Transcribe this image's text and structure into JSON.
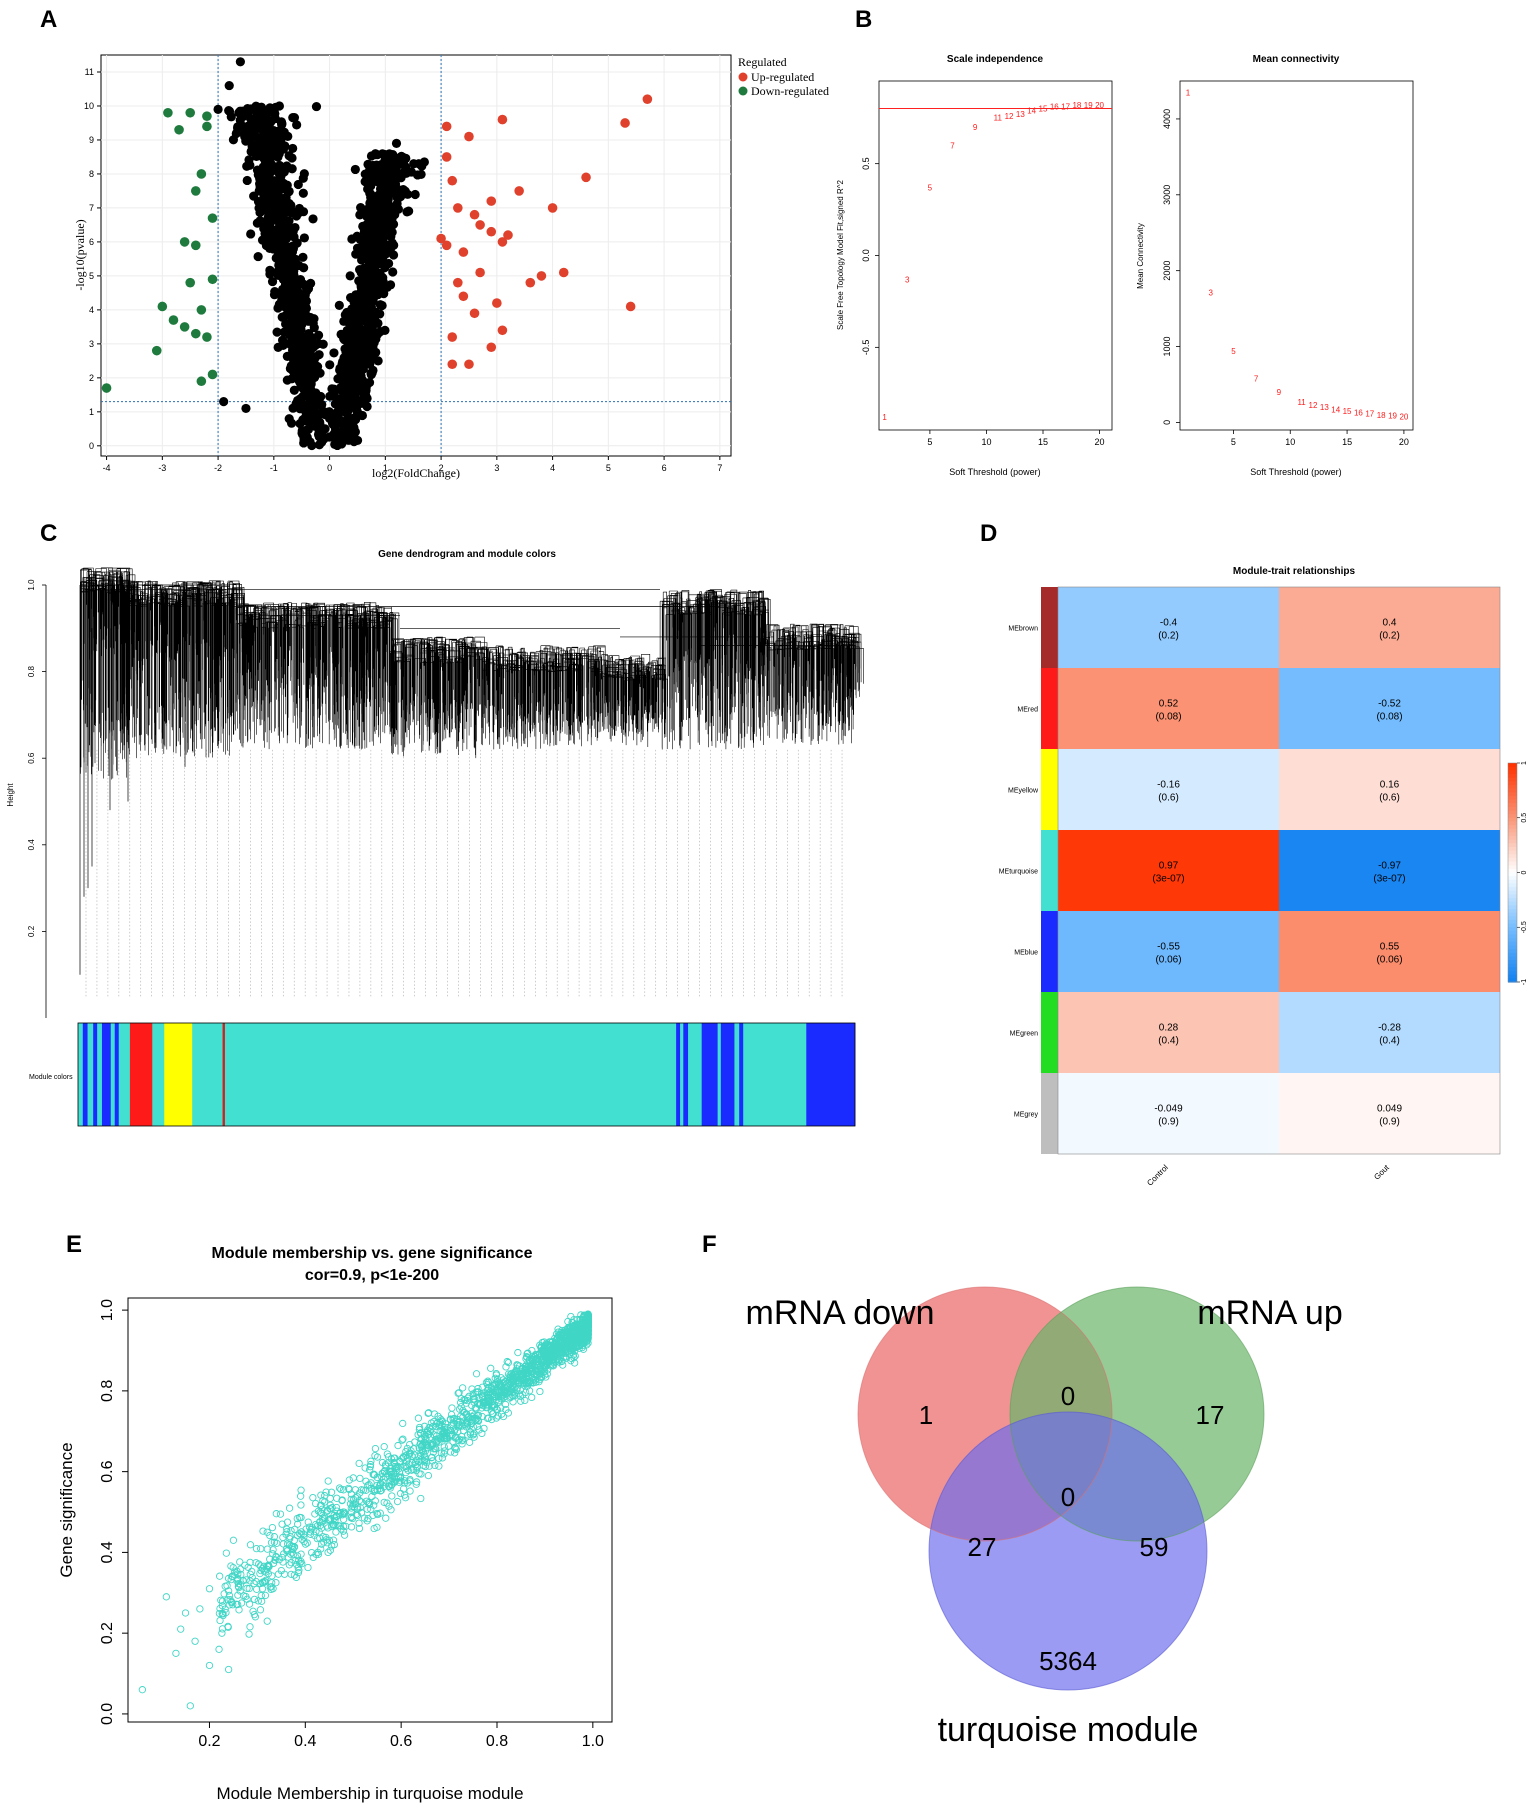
{
  "panels": {
    "A": {
      "letter": "A"
    },
    "B": {
      "letter": "B"
    },
    "C": {
      "letter": "C"
    },
    "D": {
      "letter": "D"
    },
    "E": {
      "letter": "E"
    },
    "F": {
      "letter": "F"
    }
  },
  "chart_data": [
    {
      "id": "A",
      "type": "scatter",
      "title": "",
      "xlabel": "log2(FoldChange)",
      "ylabel": "-log10(pvalue)",
      "xlim": [
        -4.1,
        7.2
      ],
      "ylim": [
        -0.3,
        11.5
      ],
      "xticks": [
        "-4",
        "-3",
        "-2",
        "-1",
        "0",
        "1",
        "2",
        "3",
        "4",
        "5",
        "6",
        "7"
      ],
      "yticks": [
        "0",
        "1",
        "2",
        "3",
        "4",
        "5",
        "6",
        "7",
        "8",
        "9",
        "10",
        "11"
      ],
      "thresholds": {
        "fc": [
          -2,
          2
        ],
        "pvalue_line": 1.3
      },
      "legend": {
        "title": "Regulated",
        "entries": [
          {
            "label": "Up-regulated",
            "color": "#e0412c"
          },
          {
            "label": "Down-regulated",
            "color": "#1f7a3e"
          }
        ],
        "position": "top-right"
      },
      "colors": {
        "not_significant": "#000000",
        "up": "#e0412c",
        "down": "#1f7a3e"
      },
      "series": [
        {
          "name": "Up-regulated",
          "points": [
            [
              5.7,
              10.2
            ],
            [
              5.3,
              9.5
            ],
            [
              3.1,
              9.6
            ],
            [
              2.5,
              9.1
            ],
            [
              4.6,
              7.9
            ],
            [
              3.4,
              7.5
            ],
            [
              4.0,
              7.0
            ],
            [
              5.4,
              4.1
            ],
            [
              4.2,
              5.1
            ],
            [
              3.8,
              5.0
            ],
            [
              3.1,
              6.0
            ],
            [
              2.9,
              6.3
            ],
            [
              3.6,
              4.8
            ],
            [
              2.6,
              6.8
            ],
            [
              2.2,
              7.8
            ],
            [
              2.1,
              8.5
            ],
            [
              2.3,
              7.0
            ],
            [
              2.7,
              5.1
            ],
            [
              2.4,
              4.4
            ],
            [
              3.0,
              4.2
            ],
            [
              3.1,
              3.4
            ],
            [
              2.9,
              2.9
            ],
            [
              2.5,
              2.4
            ],
            [
              2.1,
              5.9
            ],
            [
              2.2,
              3.2
            ],
            [
              2.6,
              3.9
            ],
            [
              2.3,
              4.8
            ],
            [
              2.9,
              7.2
            ],
            [
              3.2,
              6.2
            ],
            [
              2.1,
              9.4
            ],
            [
              2.4,
              5.7
            ],
            [
              2.0,
              6.1
            ],
            [
              2.2,
              2.4
            ],
            [
              2.7,
              6.5
            ]
          ]
        },
        {
          "name": "Down-regulated",
          "points": [
            [
              -4.0,
              1.7
            ],
            [
              -3.0,
              4.1
            ],
            [
              -3.1,
              2.8
            ],
            [
              -2.8,
              3.7
            ],
            [
              -2.6,
              6.0
            ],
            [
              -2.4,
              5.9
            ],
            [
              -2.3,
              8.0
            ],
            [
              -2.7,
              9.3
            ],
            [
              -2.5,
              9.8
            ],
            [
              -2.2,
              9.7
            ],
            [
              -2.1,
              6.7
            ],
            [
              -2.5,
              4.8
            ],
            [
              -2.3,
              4.0
            ],
            [
              -2.4,
              3.3
            ],
            [
              -2.2,
              3.2
            ],
            [
              -2.1,
              2.1
            ],
            [
              -2.9,
              9.8
            ],
            [
              -2.4,
              7.5
            ],
            [
              -2.1,
              4.9
            ],
            [
              -2.6,
              3.5
            ],
            [
              -2.2,
              9.4
            ],
            [
              -2.3,
              1.9
            ]
          ]
        }
      ]
    },
    {
      "id": "B1",
      "type": "scatter",
      "title": "Scale independence",
      "xlabel": "Soft Threshold (power)",
      "ylabel": "Scale Free Topology Model Fit,signed R^2",
      "xlim": [
        0.5,
        21.1
      ],
      "ylim": [
        -0.95,
        0.95
      ],
      "xticks": [
        "5",
        "10",
        "15",
        "20"
      ],
      "yticks": [
        "-0.5",
        "0.0",
        "0.5"
      ],
      "hline": 0.8,
      "points": [
        {
          "power": 1,
          "r2": -0.88
        },
        {
          "power": 3,
          "r2": -0.13
        },
        {
          "power": 5,
          "r2": 0.37
        },
        {
          "power": 7,
          "r2": 0.6
        },
        {
          "power": 9,
          "r2": 0.7
        },
        {
          "power": 11,
          "r2": 0.75
        },
        {
          "power": 12,
          "r2": 0.76
        },
        {
          "power": 13,
          "r2": 0.77
        },
        {
          "power": 14,
          "r2": 0.79
        },
        {
          "power": 15,
          "r2": 0.8
        },
        {
          "power": 16,
          "r2": 0.81
        },
        {
          "power": 17,
          "r2": 0.81
        },
        {
          "power": 18,
          "r2": 0.82
        },
        {
          "power": 19,
          "r2": 0.82
        },
        {
          "power": 20,
          "r2": 0.82
        }
      ]
    },
    {
      "id": "B2",
      "type": "scatter",
      "title": "Mean connectivity",
      "xlabel": "Soft Threshold (power)",
      "ylabel": "Mean Connectivity",
      "xlim": [
        0.3,
        20.8
      ],
      "ylim": [
        -0.1,
        4.5
      ],
      "ylim_units": "thousands",
      "xticks": [
        "5",
        "10",
        "15",
        "20"
      ],
      "yticks": [
        "0",
        "1000",
        "2000",
        "3000",
        "4000"
      ],
      "points": [
        {
          "power": 1,
          "k": 4.35
        },
        {
          "power": 3,
          "k": 1.71
        },
        {
          "power": 5,
          "k": 0.94
        },
        {
          "power": 7,
          "k": 0.58
        },
        {
          "power": 9,
          "k": 0.4
        },
        {
          "power": 11,
          "k": 0.27
        },
        {
          "power": 12,
          "k": 0.23
        },
        {
          "power": 13,
          "k": 0.2
        },
        {
          "power": 14,
          "k": 0.17
        },
        {
          "power": 15,
          "k": 0.15
        },
        {
          "power": 16,
          "k": 0.13
        },
        {
          "power": 17,
          "k": 0.12
        },
        {
          "power": 18,
          "k": 0.1
        },
        {
          "power": 19,
          "k": 0.09
        },
        {
          "power": 20,
          "k": 0.08
        }
      ]
    },
    {
      "id": "C",
      "type": "dendrogram",
      "title": "Gene dendrogram and module colors",
      "ylabel": "Height",
      "ylim": [
        0.0,
        1.0
      ],
      "yticks": [
        "0.2",
        "0.4",
        "0.6",
        "0.8",
        "1.0"
      ],
      "module_label": "Module colors",
      "module_segments": [
        {
          "color": "#41e0d0",
          "w": 0.6
        },
        {
          "color": "#1a2bff",
          "w": 0.6
        },
        {
          "color": "#41e0d0",
          "w": 0.7
        },
        {
          "color": "#1a2bff",
          "w": 0.5
        },
        {
          "color": "#41e0d0",
          "w": 0.6
        },
        {
          "color": "#1a2bff",
          "w": 1.1
        },
        {
          "color": "#41e0d0",
          "w": 0.5
        },
        {
          "color": "#1a2bff",
          "w": 0.5
        },
        {
          "color": "#41e0d0",
          "w": 1.4
        },
        {
          "color": "#ff1a1a",
          "w": 2.8
        },
        {
          "color": "#41e0d0",
          "w": 1.5
        },
        {
          "color": "#ffff00",
          "w": 3.5
        },
        {
          "color": "#41e0d0",
          "w": 3.8
        },
        {
          "color": "#cc2222",
          "w": 0.3
        },
        {
          "color": "#41e0d0",
          "w": 56.5
        },
        {
          "color": "#1a2bff",
          "w": 0.5
        },
        {
          "color": "#41e0d0",
          "w": 0.4
        },
        {
          "color": "#1a2bff",
          "w": 0.6
        },
        {
          "color": "#41e0d0",
          "w": 1.7
        },
        {
          "color": "#1a2bff",
          "w": 2.0
        },
        {
          "color": "#41e0d0",
          "w": 0.4
        },
        {
          "color": "#1a2bff",
          "w": 1.7
        },
        {
          "color": "#41e0d0",
          "w": 0.6
        },
        {
          "color": "#1a2bff",
          "w": 0.5
        },
        {
          "color": "#41e0d0",
          "w": 7.9
        },
        {
          "color": "#1a2bff",
          "w": 6.1
        }
      ]
    },
    {
      "id": "D",
      "type": "heatmap",
      "title": "Module-trait relationships",
      "columns": [
        "Control",
        "Gout"
      ],
      "rows": [
        {
          "name": "MEbrown",
          "color": "#a52a2a",
          "values": [
            -0.4,
            0.4
          ],
          "labels": [
            "-0.4\n(0.2)",
            "0.4\n(0.2)"
          ]
        },
        {
          "name": "MEred",
          "color": "#ff1a1a",
          "values": [
            0.52,
            -0.52
          ],
          "labels": [
            "0.52\n(0.08)",
            "-0.52\n(0.08)"
          ]
        },
        {
          "name": "MEyellow",
          "color": "#ffff00",
          "values": [
            -0.16,
            0.16
          ],
          "labels": [
            "-0.16\n(0.6)",
            "0.16\n(0.6)"
          ]
        },
        {
          "name": "MEturquoise",
          "color": "#41e0d0",
          "values": [
            0.97,
            -0.97
          ],
          "labels": [
            "0.97\n(3e-07)",
            "-0.97\n(3e-07)"
          ]
        },
        {
          "name": "MEblue",
          "color": "#1a2bff",
          "values": [
            -0.55,
            0.55
          ],
          "labels": [
            "-0.55\n(0.06)",
            "0.55\n(0.06)"
          ]
        },
        {
          "name": "MEgreen",
          "color": "#22dd22",
          "values": [
            0.28,
            -0.28
          ],
          "labels": [
            "0.28\n(0.4)",
            "-0.28\n(0.4)"
          ]
        },
        {
          "name": "MEgrey",
          "color": "#bebebe",
          "values": [
            -0.049,
            0.049
          ],
          "labels": [
            "-0.049\n(0.9)",
            "0.049\n(0.9)"
          ]
        }
      ],
      "colorbar_ticks": [
        "1",
        "0.5",
        "0",
        "-0.5",
        "-1"
      ],
      "value_range": [
        -1,
        1
      ]
    },
    {
      "id": "E",
      "type": "scatter",
      "title": "Module membership vs. gene significance",
      "subtitle": "cor=0.9, p<1e-200",
      "xlabel": "Module Membership in turquoise module",
      "ylabel": "Gene significance",
      "xlim": [
        0.03,
        1.04
      ],
      "ylim": [
        -0.02,
        1.03
      ],
      "xticks": [
        "0.2",
        "0.4",
        "0.6",
        "0.8",
        "1.0"
      ],
      "yticks": [
        "0.0",
        "0.2",
        "0.4",
        "0.6",
        "0.8",
        "1.0"
      ],
      "color": "#41d6c6",
      "correlation": 0.9,
      "outliers": [
        [
          0.06,
          0.06
        ],
        [
          0.16,
          0.02
        ],
        [
          0.11,
          0.29
        ],
        [
          0.13,
          0.15
        ],
        [
          0.14,
          0.21
        ],
        [
          0.18,
          0.26
        ],
        [
          0.2,
          0.12
        ],
        [
          0.22,
          0.16
        ],
        [
          0.24,
          0.11
        ],
        [
          0.17,
          0.18
        ],
        [
          0.25,
          0.43
        ],
        [
          0.2,
          0.31
        ],
        [
          0.15,
          0.25
        ]
      ]
    },
    {
      "id": "F",
      "type": "venn",
      "sets": [
        "mRNA down",
        "mRNA up",
        "turquoise module"
      ],
      "set_colors": [
        "#f08080",
        "#6ab56a",
        "#7f7fef"
      ],
      "regions": [
        {
          "sets": [
            "mRNA down"
          ],
          "count": "1"
        },
        {
          "sets": [
            "mRNA down",
            "mRNA up"
          ],
          "count": "0"
        },
        {
          "sets": [
            "mRNA up"
          ],
          "count": "17"
        },
        {
          "sets": [
            "mRNA down",
            "mRNA up",
            "turquoise module"
          ],
          "count": "0"
        },
        {
          "sets": [
            "mRNA down",
            "turquoise module"
          ],
          "count": "27"
        },
        {
          "sets": [
            "mRNA up",
            "turquoise module"
          ],
          "count": "59"
        },
        {
          "sets": [
            "turquoise module"
          ],
          "count": "5364"
        }
      ]
    }
  ]
}
